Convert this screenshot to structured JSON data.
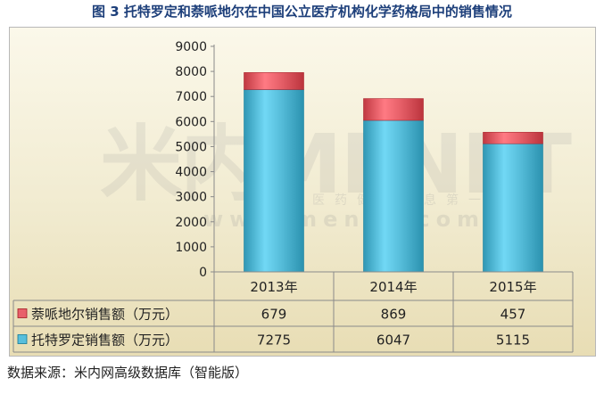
{
  "title": "图 3  托特罗定和萘哌地尔在中国公立医疗机构化学药格局中的销售情况",
  "source": "数据来源：米内网高级数据库（智能版）",
  "watermark": {
    "brand": "米内MENET",
    "subtitle": "中国医药健康信息第一平台",
    "url": "www.menet.com.cn"
  },
  "colors": {
    "naftopidil": "#e8616a",
    "tolterodine": "#58bfdc"
  },
  "chart_data": {
    "type": "bar",
    "stacked": true,
    "categories": [
      "2013年",
      "2014年",
      "2015年"
    ],
    "series": [
      {
        "name": "托特罗定销售额（万元）",
        "values": [
          7275,
          6047,
          5115
        ],
        "color_key": "tolterodine"
      },
      {
        "name": "萘哌地尔销售额（万元）",
        "values": [
          679,
          869,
          457
        ],
        "color_key": "naftopidil"
      }
    ],
    "table_row_order": [
      1,
      0
    ],
    "ylim": [
      0,
      9000
    ],
    "yticks": [
      0,
      1000,
      2000,
      3000,
      4000,
      5000,
      6000,
      7000,
      8000,
      9000
    ],
    "grid": false,
    "data_table": true
  }
}
